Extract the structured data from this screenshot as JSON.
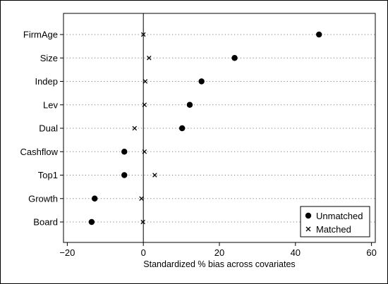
{
  "chart_data": {
    "type": "scatter",
    "title": "",
    "xlabel": "Standardized % bias across covariates",
    "ylabel": "",
    "xlim": [
      -21,
      61
    ],
    "xticks": [
      -20,
      0,
      20,
      40,
      60
    ],
    "xtick_labels": [
      "−20",
      "0",
      "20",
      "40",
      "60"
    ],
    "categories": [
      "FirmAge",
      "Size",
      "Indep",
      "Lev",
      "Dual",
      "Cashflow",
      "Top1",
      "Growth",
      "Board"
    ],
    "series": [
      {
        "name": "Unmatched",
        "marker": "circle",
        "values": [
          46.2,
          24.0,
          15.3,
          12.2,
          10.2,
          -5.0,
          -5.0,
          -12.8,
          -13.6
        ]
      },
      {
        "name": "Matched",
        "marker": "x",
        "values": [
          0.0,
          1.5,
          0.5,
          0.3,
          -2.3,
          0.3,
          3.0,
          -0.5,
          -0.1
        ]
      }
    ],
    "grid": "dotted horizontal per category",
    "reference_line": 0,
    "legend_position": "bottom-right",
    "colors": {
      "marker": "#000000",
      "grid": "#7f7f7f",
      "axis": "#000000"
    }
  }
}
